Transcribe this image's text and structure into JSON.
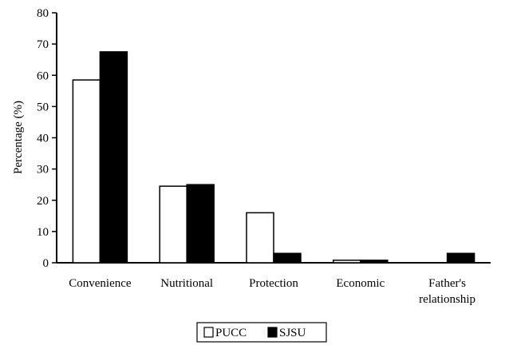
{
  "chart_data": {
    "type": "bar",
    "title": "",
    "xlabel": "",
    "ylabel": "Percentage (%)",
    "ylim": [
      0,
      80
    ],
    "yticks": [
      0,
      10,
      20,
      30,
      40,
      50,
      60,
      70,
      80
    ],
    "grid": false,
    "legend_position": "bottom-center",
    "categories": [
      [
        "Convenience"
      ],
      [
        "Nutritional"
      ],
      [
        "Protection"
      ],
      [
        "Economic"
      ],
      [
        "Father's",
        "relationship"
      ]
    ],
    "series": [
      {
        "name": "PUCC",
        "values": [
          58.5,
          24.5,
          16,
          0.8,
          0
        ],
        "color": "#ffffff"
      },
      {
        "name": "SJSU",
        "values": [
          67.5,
          25,
          3,
          0.8,
          3
        ],
        "color": "#000000"
      }
    ]
  }
}
